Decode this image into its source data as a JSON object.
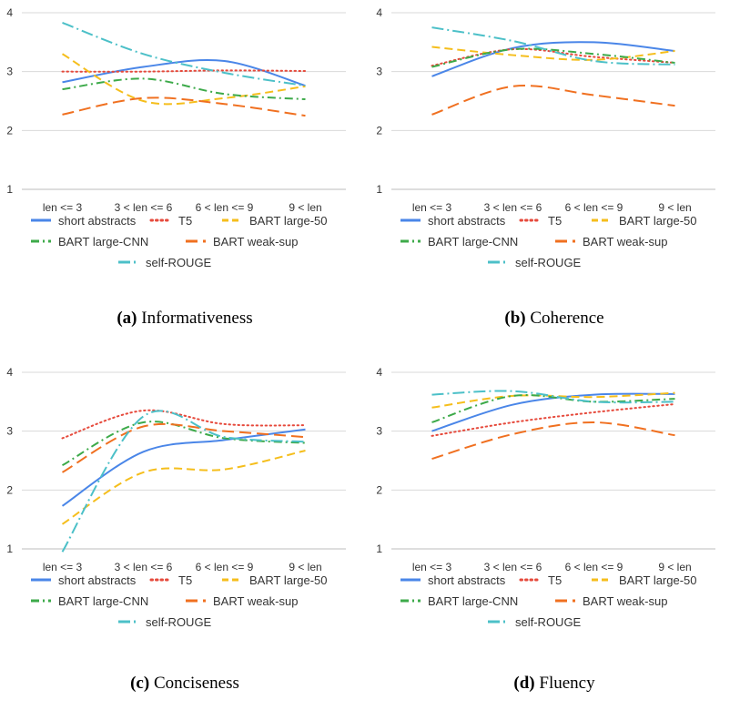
{
  "chart_data": [
    {
      "type": "line",
      "caption_letter": "(a)",
      "caption_text": "Informativeness",
      "categories": [
        "len <= 3",
        "3 < len <= 6",
        "6 < len <= 9",
        "9 < len"
      ],
      "ylim": [
        1,
        4
      ],
      "yticks": [
        "1",
        "2",
        "3",
        "4"
      ],
      "grid": true,
      "legend_position": "bottom",
      "series": [
        {
          "name": "short abstracts",
          "values": [
            2.82,
            3.08,
            3.18,
            2.76
          ]
        },
        {
          "name": "T5",
          "values": [
            3.0,
            3.0,
            3.02,
            3.01
          ]
        },
        {
          "name": "BART large-50",
          "values": [
            3.3,
            2.5,
            2.55,
            2.75
          ]
        },
        {
          "name": "BART large-CNN",
          "values": [
            2.7,
            2.88,
            2.62,
            2.53
          ]
        },
        {
          "name": "BART weak-sup",
          "values": [
            2.27,
            2.55,
            2.45,
            2.25
          ]
        },
        {
          "name": "self-ROUGE",
          "values": [
            3.83,
            3.3,
            2.98,
            2.76
          ]
        }
      ]
    },
    {
      "type": "line",
      "caption_letter": "(b)",
      "caption_text": "Coherence",
      "categories": [
        "len <= 3",
        "3 < len <= 6",
        "6 < len <= 9",
        "9 < len"
      ],
      "ylim": [
        1,
        4
      ],
      "yticks": [
        "1",
        "2",
        "3",
        "4"
      ],
      "grid": true,
      "legend_position": "bottom",
      "series": [
        {
          "name": "short abstracts",
          "values": [
            2.92,
            3.4,
            3.5,
            3.35
          ]
        },
        {
          "name": "T5",
          "values": [
            3.1,
            3.38,
            3.25,
            3.15
          ]
        },
        {
          "name": "BART large-50",
          "values": [
            3.42,
            3.28,
            3.2,
            3.35
          ]
        },
        {
          "name": "BART large-CNN",
          "values": [
            3.08,
            3.38,
            3.3,
            3.15
          ]
        },
        {
          "name": "BART weak-sup",
          "values": [
            2.27,
            2.75,
            2.6,
            2.42
          ]
        },
        {
          "name": "self-ROUGE",
          "values": [
            3.75,
            3.52,
            3.18,
            3.12
          ]
        }
      ]
    },
    {
      "type": "line",
      "caption_letter": "(c)",
      "caption_text": "Conciseness",
      "categories": [
        "len <= 3",
        "3 < len <= 6",
        "6 < len <= 9",
        "9 < len"
      ],
      "ylim": [
        1,
        4
      ],
      "yticks": [
        "1",
        "2",
        "3",
        "4"
      ],
      "grid": true,
      "legend_position": "bottom",
      "series": [
        {
          "name": "short abstracts",
          "values": [
            1.73,
            2.65,
            2.85,
            3.03
          ]
        },
        {
          "name": "T5",
          "values": [
            2.88,
            3.35,
            3.12,
            3.1
          ]
        },
        {
          "name": "BART large-50",
          "values": [
            1.42,
            2.3,
            2.35,
            2.67
          ]
        },
        {
          "name": "BART large-CNN",
          "values": [
            2.42,
            3.15,
            2.88,
            2.8
          ]
        },
        {
          "name": "BART weak-sup",
          "values": [
            2.3,
            3.08,
            3.0,
            2.9
          ]
        },
        {
          "name": "self-ROUGE",
          "values": [
            0.95,
            3.25,
            2.9,
            2.82
          ]
        }
      ]
    },
    {
      "type": "line",
      "caption_letter": "(d)",
      "caption_text": "Fluency",
      "categories": [
        "len <= 3",
        "3 < len <= 6",
        "6 < len <= 9",
        "9 < len"
      ],
      "ylim": [
        1,
        4
      ],
      "yticks": [
        "1",
        "2",
        "3",
        "4"
      ],
      "grid": true,
      "legend_position": "bottom",
      "series": [
        {
          "name": "short abstracts",
          "values": [
            3.0,
            3.45,
            3.62,
            3.63
          ]
        },
        {
          "name": "T5",
          "values": [
            2.92,
            3.15,
            3.32,
            3.46
          ]
        },
        {
          "name": "BART large-50",
          "values": [
            3.4,
            3.6,
            3.58,
            3.65
          ]
        },
        {
          "name": "BART large-CNN",
          "values": [
            3.15,
            3.6,
            3.5,
            3.55
          ]
        },
        {
          "name": "BART weak-sup",
          "values": [
            2.53,
            2.95,
            3.15,
            2.93
          ]
        },
        {
          "name": "self-ROUGE",
          "values": [
            3.62,
            3.68,
            3.5,
            3.5
          ]
        }
      ]
    }
  ],
  "series_style": [
    {
      "color": "#4A86E8",
      "dash": ""
    },
    {
      "color": "#E64A3C",
      "dash": "1.5,3.5"
    },
    {
      "color": "#F5BE1C",
      "dash": "9,5"
    },
    {
      "color": "#3DAA4A",
      "dash": "9,4,2,4"
    },
    {
      "color": "#F07020",
      "dash": "13,6"
    },
    {
      "color": "#4CC0C8",
      "dash": "13,4,2,4"
    }
  ]
}
